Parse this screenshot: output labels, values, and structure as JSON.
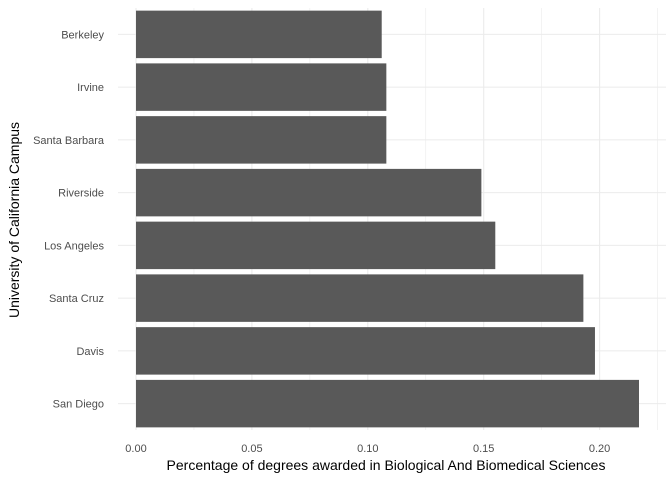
{
  "chart_data": {
    "type": "bar",
    "orientation": "horizontal",
    "categories": [
      "Berkeley",
      "Irvine",
      "Santa Barbara",
      "Riverside",
      "Los Angeles",
      "Santa Cruz",
      "Davis",
      "San Diego"
    ],
    "values": [
      0.106,
      0.108,
      0.108,
      0.149,
      0.155,
      0.193,
      0.198,
      0.217
    ],
    "xlabel": "Percentage of degrees awarded in Biological And Biomedical Sciences",
    "ylabel": "University of California Campus",
    "xlim": [
      0,
      0.23
    ],
    "x_ticks": [
      "0.00",
      "0.05",
      "0.10",
      "0.15",
      "0.20"
    ],
    "grid": true,
    "colors": {
      "bar": "#595959",
      "grid": "#ebebeb",
      "tick_text": "#4d4d4d"
    }
  }
}
